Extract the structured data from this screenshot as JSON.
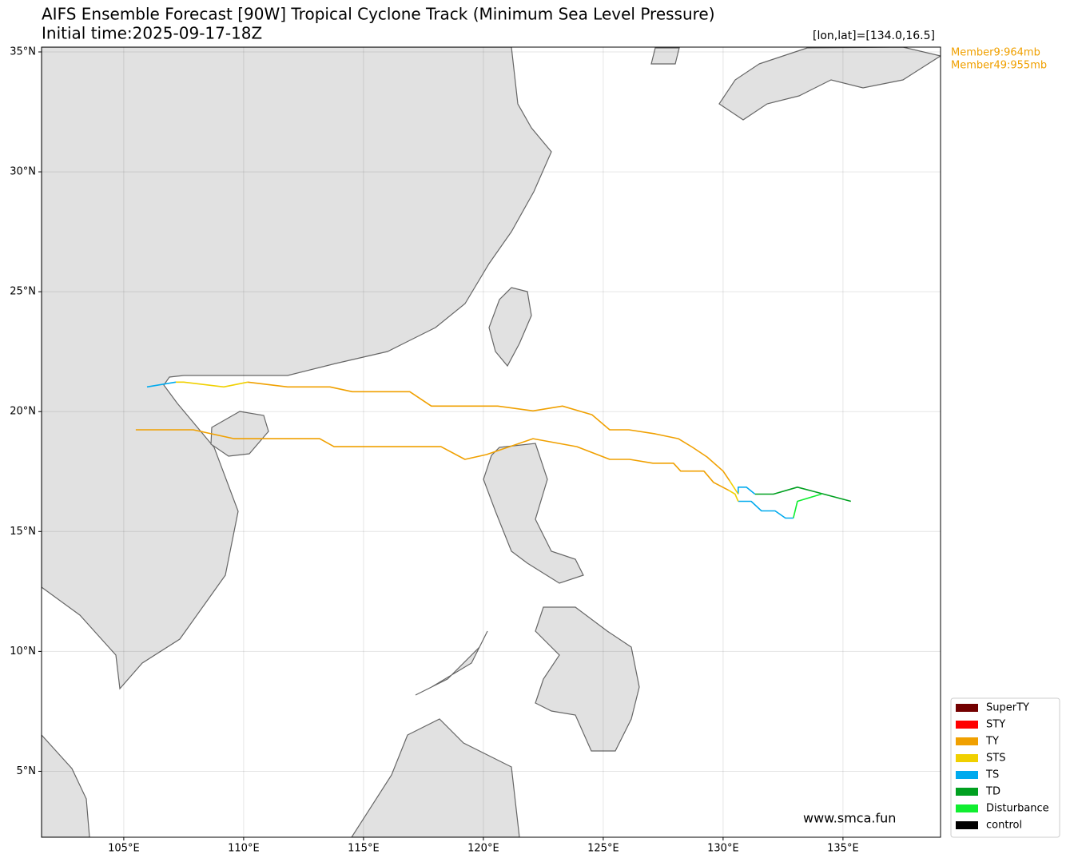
{
  "chart_data": {
    "type": "track-map",
    "title": "AIFS Ensemble Forecast [90W] Tropical Cyclone Track (Minimum Sea Level Pressure)",
    "subtitle": "Initial time:2025-09-17-18Z",
    "position_label": "[lon,lat]=[134.0,16.5]",
    "member_labels": {
      "color": "#f0a000",
      "items": [
        "Member9:964mb",
        "Member49:955mb"
      ]
    },
    "watermark": "www.smca.fun",
    "xlim": [
      101.57,
      139.07
    ],
    "ylim": [
      2.25,
      35.2
    ],
    "xticks": [
      {
        "value": 105,
        "label": "105°E"
      },
      {
        "value": 110,
        "label": "110°E"
      },
      {
        "value": 115,
        "label": "115°E"
      },
      {
        "value": 120,
        "label": "120°E"
      },
      {
        "value": 125,
        "label": "125°E"
      },
      {
        "value": 130,
        "label": "130°E"
      },
      {
        "value": 135,
        "label": "135°E"
      }
    ],
    "yticks": [
      {
        "value": 5,
        "label": "5°N"
      },
      {
        "value": 10,
        "label": "10°N"
      },
      {
        "value": 15,
        "label": "15°N"
      },
      {
        "value": 20,
        "label": "20°N"
      },
      {
        "value": 25,
        "label": "25°N"
      },
      {
        "value": 30,
        "label": "30°N"
      },
      {
        "value": 35,
        "label": "35°N"
      }
    ],
    "grid": true,
    "legend_loc": "lower right",
    "legend": [
      {
        "name": "SuperTY",
        "color": "#730000"
      },
      {
        "name": "STY",
        "color": "#ff0000"
      },
      {
        "name": "TY",
        "color": "#f0a000"
      },
      {
        "name": "STS",
        "color": "#f0d000"
      },
      {
        "name": "TS",
        "color": "#00aaee"
      },
      {
        "name": "TD",
        "color": "#00a020"
      },
      {
        "name": "Disturbance",
        "color": "#10ee30"
      },
      {
        "name": "control",
        "color": "#000000"
      }
    ],
    "tracks": [
      {
        "color": "#00a020",
        "x": [
          135.33,
          133.1,
          132.1,
          131.33
        ],
        "y": [
          16.26,
          16.85,
          16.56,
          16.56
        ]
      },
      {
        "color": "#00aaee",
        "x": [
          131.33,
          130.97,
          130.63,
          130.63
        ],
        "y": [
          16.56,
          16.85,
          16.85,
          16.56
        ]
      },
      {
        "color": "#f0d000",
        "x": [
          130.63,
          130.27
        ],
        "y": [
          16.56,
          17.12
        ]
      },
      {
        "color": "#f0a000",
        "x": [
          130.27,
          130.0,
          129.33,
          128.73,
          128.13,
          127.17,
          126.07,
          125.27,
          124.53,
          123.3,
          122.07,
          120.6,
          117.83,
          116.93,
          114.53,
          113.6,
          111.83,
          110.17
        ],
        "y": [
          17.12,
          17.52,
          18.11,
          18.51,
          18.87,
          19.07,
          19.24,
          19.24,
          19.87,
          20.23,
          20.03,
          20.23,
          20.23,
          20.83,
          20.83,
          21.03,
          21.03,
          21.23
        ]
      },
      {
        "color": "#f0d000",
        "x": [
          110.17,
          109.17,
          107.5,
          107.17
        ],
        "y": [
          21.23,
          21.03,
          21.23,
          21.23
        ]
      },
      {
        "color": "#00aaee",
        "x": [
          107.17,
          105.97
        ],
        "y": [
          21.23,
          21.03
        ]
      },
      {
        "color": "#10ee30",
        "x": [
          134.1,
          133.1,
          132.93
        ],
        "y": [
          16.56,
          16.26,
          15.56
        ]
      },
      {
        "color": "#00aaee",
        "x": [
          132.93,
          132.6,
          132.17,
          131.6,
          131.17,
          130.63
        ],
        "y": [
          15.56,
          15.56,
          15.86,
          15.86,
          16.26,
          16.26
        ]
      },
      {
        "color": "#f0d000",
        "x": [
          130.63,
          130.5,
          130.23
        ],
        "y": [
          16.26,
          16.56,
          16.72
        ]
      },
      {
        "color": "#f0a000",
        "x": [
          130.23,
          129.6,
          129.2,
          128.23,
          127.93,
          127.07,
          126.1,
          125.27,
          123.9,
          122.07,
          120.13,
          119.23,
          118.23,
          113.77,
          113.17,
          109.6,
          107.9,
          105.5
        ],
        "y": [
          16.72,
          17.05,
          17.52,
          17.52,
          17.85,
          17.85,
          18.01,
          18.01,
          18.54,
          18.87,
          18.21,
          18.01,
          18.54,
          18.54,
          18.87,
          18.87,
          19.24,
          19.24
        ]
      }
    ]
  }
}
